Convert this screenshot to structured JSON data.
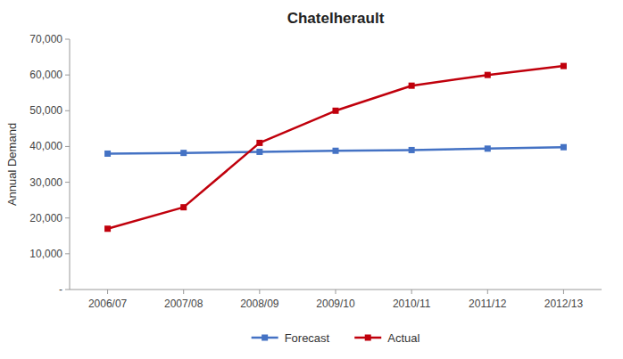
{
  "chart_data": {
    "type": "line",
    "title": "Chatelherault",
    "ylabel": "Annual Demand",
    "categories": [
      "2006/07",
      "2007/08",
      "2008/09",
      "2009/10",
      "2010/11",
      "2011/12",
      "2012/13"
    ],
    "series": [
      {
        "name": "Forecast",
        "color": "#4472C4",
        "marker": "square",
        "values": [
          38000,
          38200,
          38500,
          38800,
          39000,
          39400,
          39800
        ]
      },
      {
        "name": "Actual",
        "color": "#C0000C",
        "marker": "square",
        "values": [
          17000,
          23000,
          41000,
          50000,
          57000,
          60000,
          62500
        ]
      }
    ],
    "ylim": [
      0,
      70000
    ],
    "yticks": [
      {
        "value": 0,
        "label": "-"
      },
      {
        "value": 10000,
        "label": "10,000"
      },
      {
        "value": 20000,
        "label": "20,000"
      },
      {
        "value": 30000,
        "label": "30,000"
      },
      {
        "value": 40000,
        "label": "40,000"
      },
      {
        "value": 50000,
        "label": "50,000"
      },
      {
        "value": 60000,
        "label": "60,000"
      },
      {
        "value": 70000,
        "label": "70,000"
      }
    ],
    "grid": false,
    "legend": "bottom"
  }
}
